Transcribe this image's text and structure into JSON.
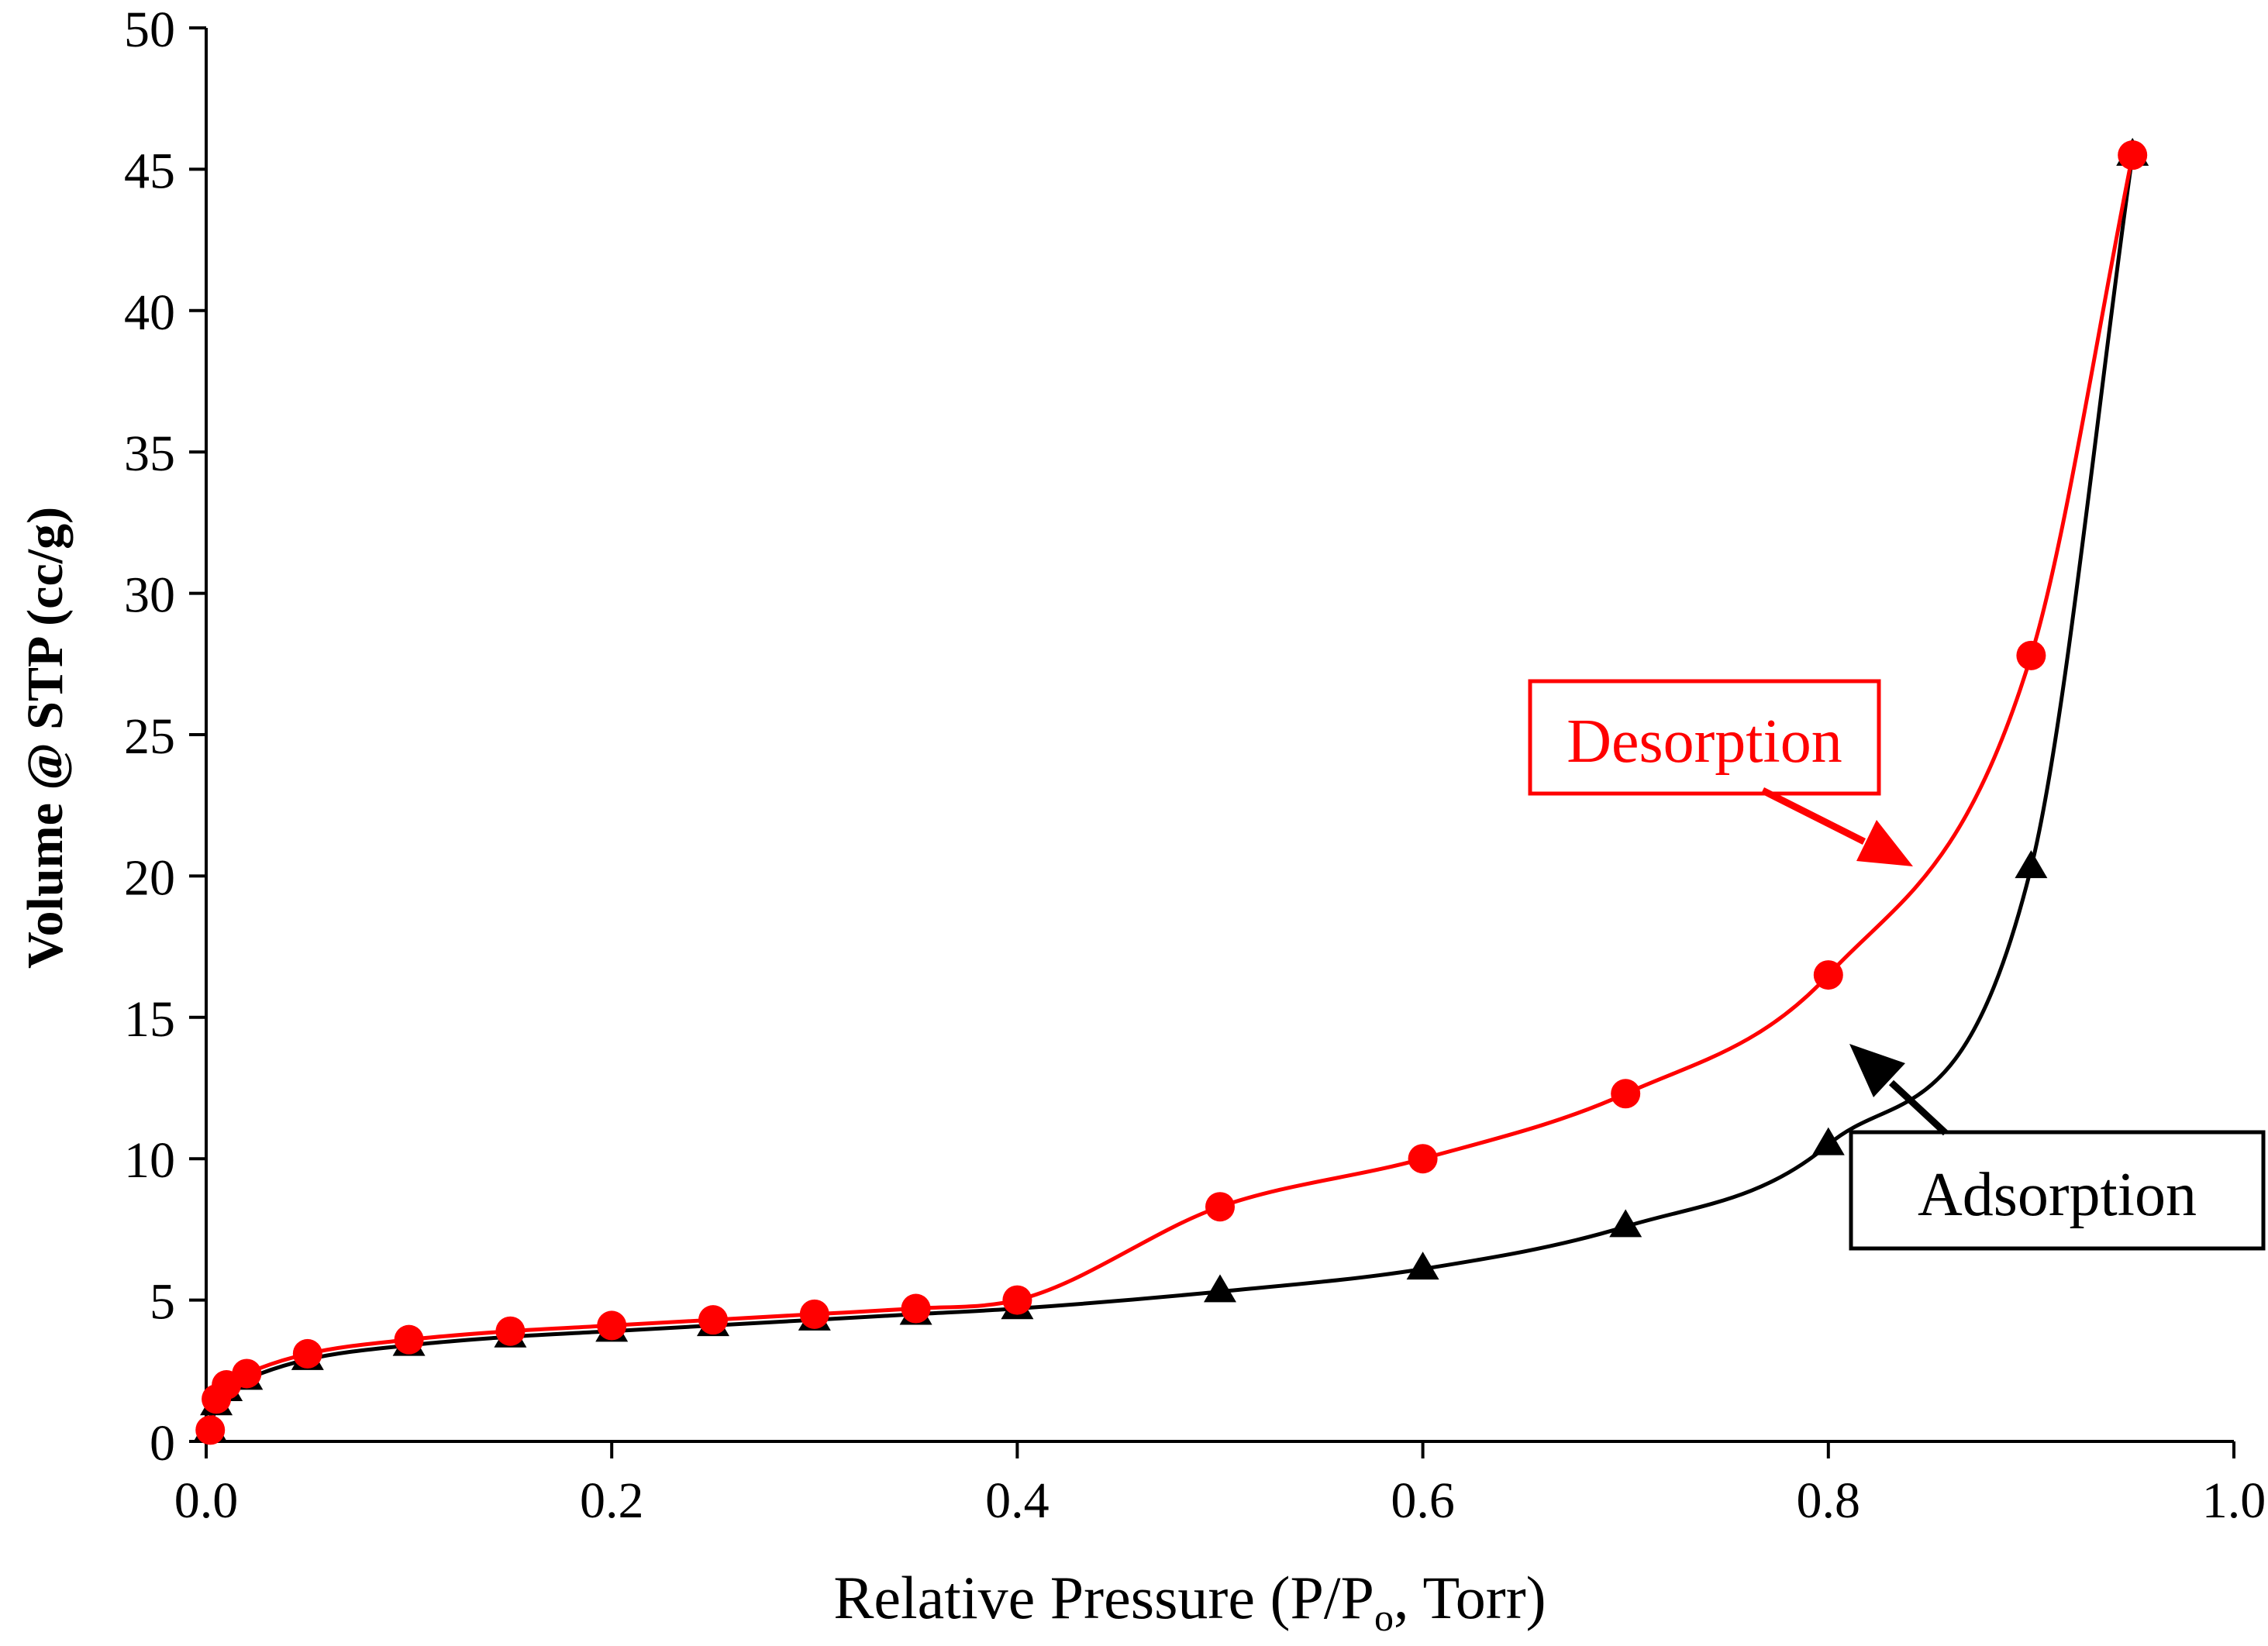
{
  "chart_data": {
    "type": "line",
    "title": "",
    "xlabel": "Relative Pressure (P/P",
    "xlabel_sub": "o",
    "xlabel_tail": ", Torr)",
    "ylabel": "Volume @ STP (cc/g)",
    "xlim": [
      0,
      1.0
    ],
    "ylim": [
      0,
      50
    ],
    "x_ticks": [
      "0.0",
      "0.2",
      "0.4",
      "0.6",
      "0.8",
      "1.0"
    ],
    "y_ticks": [
      "0",
      "5",
      "10",
      "15",
      "20",
      "25",
      "30",
      "35",
      "40",
      "45",
      "50"
    ],
    "grid": false,
    "series": [
      {
        "name": "Adsorption",
        "color": "#000000",
        "marker": "triangle",
        "x": [
          0.002,
          0.005,
          0.01,
          0.02,
          0.05,
          0.1,
          0.15,
          0.2,
          0.25,
          0.3,
          0.35,
          0.4,
          0.5,
          0.6,
          0.7,
          0.8,
          0.9,
          0.95
        ],
        "y": [
          0.4,
          1.3,
          1.8,
          2.2,
          2.9,
          3.4,
          3.7,
          3.9,
          4.1,
          4.3,
          4.5,
          4.7,
          5.3,
          6.1,
          7.6,
          10.5,
          20.3,
          45.5
        ]
      },
      {
        "name": "Desorption",
        "color": "#ff0000",
        "marker": "circle",
        "x": [
          0.002,
          0.005,
          0.01,
          0.02,
          0.05,
          0.1,
          0.15,
          0.2,
          0.25,
          0.3,
          0.35,
          0.4,
          0.5,
          0.6,
          0.7,
          0.8,
          0.9,
          0.95
        ],
        "y": [
          0.4,
          1.5,
          2.0,
          2.4,
          3.1,
          3.6,
          3.9,
          4.1,
          4.3,
          4.5,
          4.7,
          5.0,
          8.3,
          10.0,
          12.3,
          16.5,
          27.8,
          45.5
        ]
      }
    ],
    "annotations": [
      {
        "text": "Desorption",
        "color": "#ff0000"
      },
      {
        "text": "Adsorption",
        "color": "#000000"
      }
    ]
  }
}
